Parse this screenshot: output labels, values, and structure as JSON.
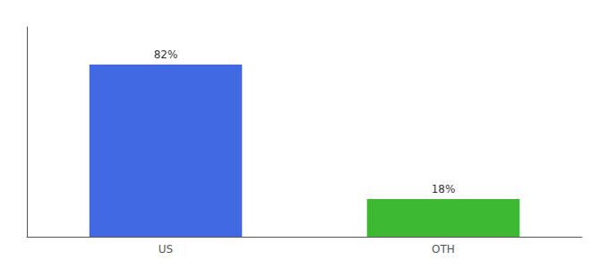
{
  "chart_data": {
    "type": "bar",
    "categories": [
      "US",
      "OTH"
    ],
    "values": [
      82,
      18
    ],
    "value_labels": [
      "82%",
      "18%"
    ],
    "colors": [
      "#4169e1",
      "#3cb832"
    ],
    "ylim": [
      0,
      100
    ],
    "data_labels": true,
    "grid": false,
    "tick_labels": "x"
  }
}
